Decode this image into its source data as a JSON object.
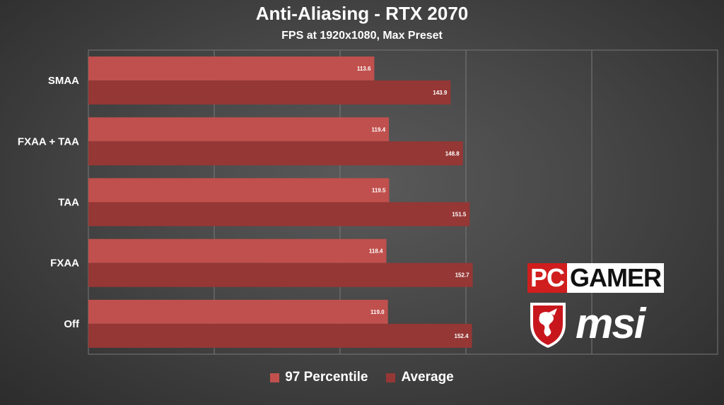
{
  "chart_data": {
    "type": "bar",
    "orientation": "horizontal",
    "title": "Anti-Aliasing - RTX 2070",
    "subtitle": "FPS at 1920x1080, Max Preset",
    "categories": [
      "SMAA",
      "FXAA + TAA",
      "TAA",
      "FXAA",
      "Off"
    ],
    "series": [
      {
        "name": "97 Percentile",
        "color": "#c0504d",
        "values": [
          113.6,
          119.4,
          119.5,
          118.4,
          119.0
        ]
      },
      {
        "name": "Average",
        "color": "#953735",
        "values": [
          143.9,
          148.8,
          151.5,
          152.7,
          152.4
        ]
      }
    ],
    "xlim": [
      0,
      250
    ],
    "grid": true,
    "legend_position": "bottom"
  },
  "logos": {
    "pcgamer_pc": "PC",
    "pcgamer_gamer": "GAMER",
    "msi": "msi"
  }
}
